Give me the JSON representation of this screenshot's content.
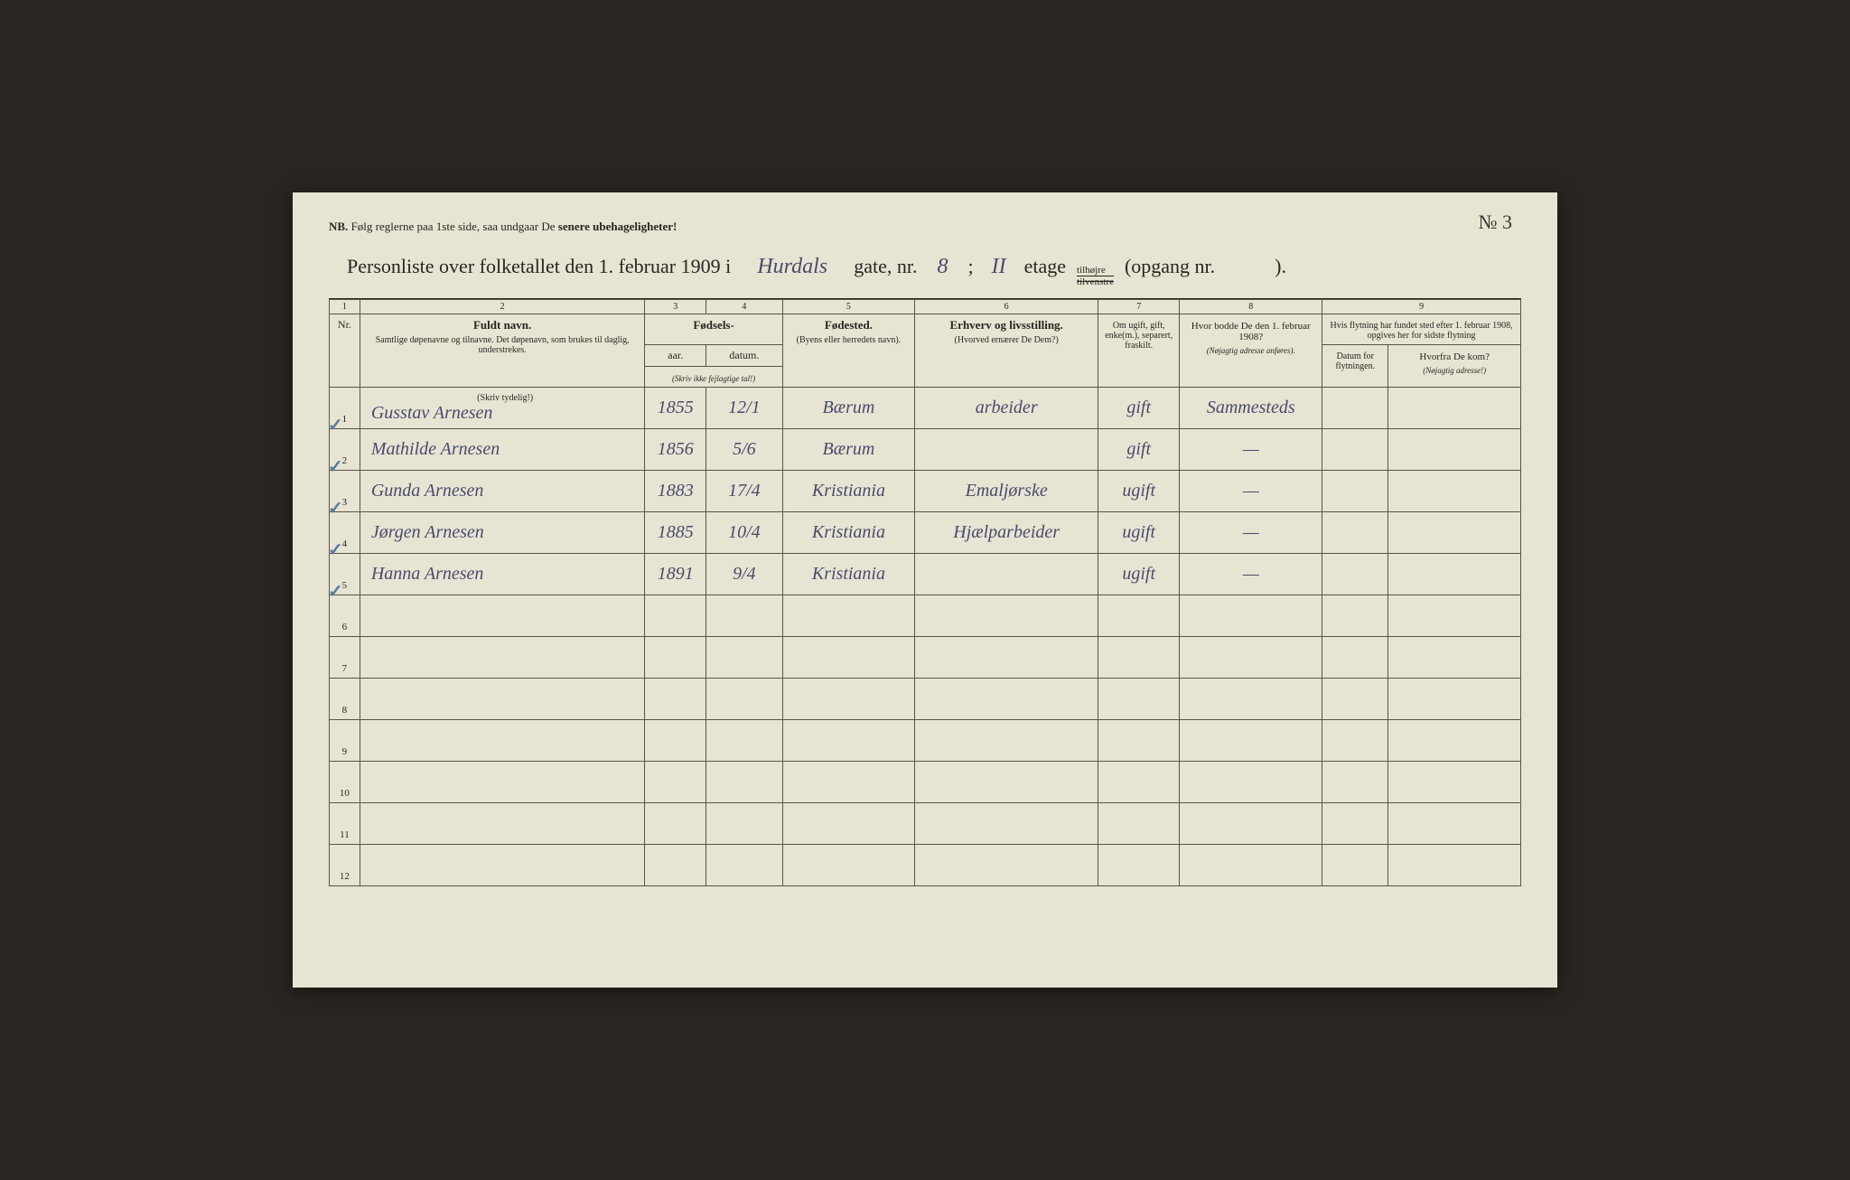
{
  "page_number_label": "№ 3",
  "nb": {
    "prefix": "NB.",
    "text": "Følg reglerne paa 1ste side, saa undgaar De",
    "bold_end": "senere ubehageligheter!"
  },
  "title": {
    "prefix": "Personliste over folketallet den 1. februar 1909 i",
    "street": "Hurdals",
    "gate_label": "gate, nr.",
    "gate_nr": "8",
    "separator": ";",
    "etage_nr": "II",
    "etage_label": "etage",
    "tilhojre": "tilhøjre",
    "tilvenstre": "tilvenstre",
    "opgang": "(opgang nr.",
    "opgang_close": ")."
  },
  "headers": {
    "col_nums": [
      "1",
      "2",
      "3",
      "4",
      "5",
      "6",
      "7",
      "8",
      "9"
    ],
    "nr": "Nr.",
    "fuldt_navn": "Fuldt navn.",
    "fuldt_navn_sub": "Samtlige døpenavne og tilnavne. Det døpenavn, som brukes til daglig, understrekes.",
    "fodsels": "Fødsels-",
    "aar": "aar.",
    "datum": "datum.",
    "fodsels_note": "(Skriv ikke fejlagtige tal!)",
    "fodested": "Fødested.",
    "fodested_sub": "(Byens eller herredets navn).",
    "erhverv": "Erhverv og livsstilling.",
    "erhverv_sub": "(Hvorved ernærer De Dem?)",
    "om_ugift": "Om ugift, gift, enke(m.), separert, fraskilt.",
    "hvor_bodde": "Hvor bodde De den 1. februar 1908?",
    "hvor_bodde_sub": "(Nøjagtig adresse anføres).",
    "flytning": "Hvis flytning har fundet sted efter 1. februar 1908, opgives her for sidste flytning",
    "datum_flyt": "Datum for flytningen.",
    "hvorfra": "Hvorfra De kom?",
    "hvorfra_sub": "(Nøjagtig adresse!)",
    "skriv_tydelig": "(Skriv tydelig!)"
  },
  "rows": [
    {
      "nr": "1",
      "check": "✓",
      "navn": "Gusstav Arnesen",
      "aar": "1855",
      "datum": "12/1",
      "fodested": "Bærum",
      "erhverv": "arbeider",
      "status": "gift",
      "bodde": "Sammesteds",
      "flyt_datum": "",
      "hvorfra": ""
    },
    {
      "nr": "2",
      "check": "✓",
      "navn": "Mathilde Arnesen",
      "aar": "1856",
      "datum": "5/6",
      "fodested": "Bærum",
      "erhverv": "",
      "status": "gift",
      "bodde": "—",
      "flyt_datum": "",
      "hvorfra": ""
    },
    {
      "nr": "3",
      "check": "✓",
      "navn": "Gunda Arnesen",
      "aar": "1883",
      "datum": "17/4",
      "fodested": "Kristiania",
      "erhverv": "Emaljørske",
      "status": "ugift",
      "bodde": "—",
      "flyt_datum": "",
      "hvorfra": ""
    },
    {
      "nr": "4",
      "check": "✓",
      "navn": "Jørgen Arnesen",
      "aar": "1885",
      "datum": "10/4",
      "fodested": "Kristiania",
      "erhverv": "Hjælparbeider",
      "status": "ugift",
      "bodde": "—",
      "flyt_datum": "",
      "hvorfra": ""
    },
    {
      "nr": "5",
      "check": "✓",
      "navn": "Hanna Arnesen",
      "aar": "1891",
      "datum": "9/4",
      "fodested": "Kristiania",
      "erhverv": "",
      "status": "ugift",
      "bodde": "—",
      "flyt_datum": "",
      "hvorfra": ""
    }
  ],
  "empty_rows": [
    "6",
    "7",
    "8",
    "9",
    "10",
    "11",
    "12"
  ],
  "colors": {
    "paper": "#e8e4d4",
    "ink": "#2a2520",
    "handwriting": "#4a4a6a",
    "check": "#5a7a9a",
    "border": "#5a5248"
  }
}
